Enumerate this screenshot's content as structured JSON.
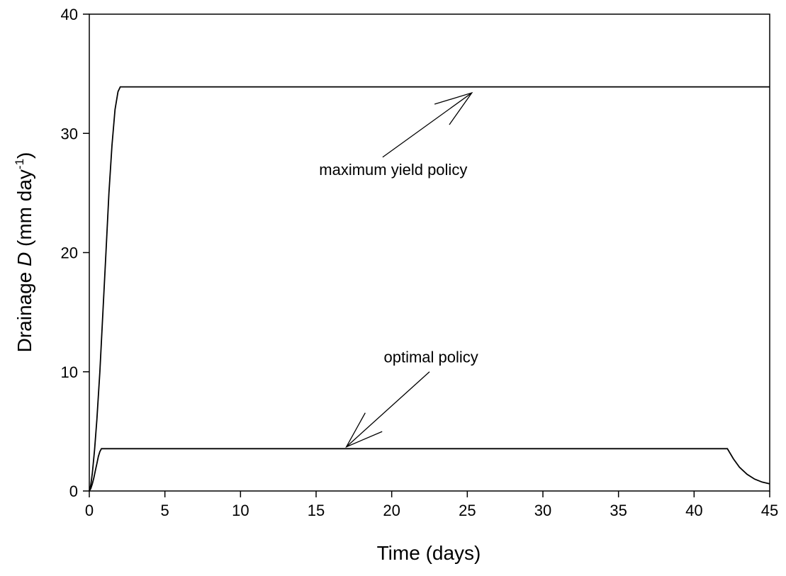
{
  "chart_data": {
    "type": "line",
    "xlabel": "Time (days)",
    "ylabel": {
      "prefix": "Drainage ",
      "symbol": "D",
      "unit_open": " (mm day",
      "unit_exp": "-1",
      "unit_close": ")"
    },
    "xlim": [
      0,
      45
    ],
    "ylim": [
      0,
      40
    ],
    "xticks": [
      0,
      5,
      10,
      15,
      20,
      25,
      30,
      35,
      40,
      45
    ],
    "yticks": [
      0,
      10,
      20,
      30,
      40
    ],
    "grid": false,
    "series": [
      {
        "x": [
          0,
          0.1,
          0.2,
          0.35,
          0.5,
          0.7,
          0.9,
          1.1,
          1.3,
          1.5,
          1.7,
          1.9,
          2.05,
          45
        ],
        "y": [
          0,
          0.5,
          1.5,
          3.5,
          6,
          10,
          15,
          20,
          25,
          29,
          32,
          33.5,
          33.9,
          33.9
        ]
      },
      {
        "x": [
          0,
          0.1,
          0.2,
          0.3,
          0.4,
          0.5,
          0.6,
          0.7,
          0.8,
          42.2,
          42.6,
          43,
          43.5,
          44,
          44.5,
          45
        ],
        "y": [
          0,
          0.2,
          0.6,
          1.1,
          1.7,
          2.3,
          2.9,
          3.3,
          3.55,
          3.55,
          2.7,
          2.0,
          1.4,
          1.0,
          0.75,
          0.6
        ]
      }
    ],
    "annotations": [
      {
        "text": "maximum yield policy",
        "text_x": 20.1,
        "text_y": 26.5,
        "arrow_from": [
          19.4,
          28.0
        ],
        "arrow_to": [
          25.3,
          33.4
        ]
      },
      {
        "text": "optimal policy",
        "text_x": 22.6,
        "text_y": 10.8,
        "arrow_from": [
          22.5,
          10.0
        ],
        "arrow_to": [
          17.0,
          3.7
        ]
      }
    ]
  }
}
